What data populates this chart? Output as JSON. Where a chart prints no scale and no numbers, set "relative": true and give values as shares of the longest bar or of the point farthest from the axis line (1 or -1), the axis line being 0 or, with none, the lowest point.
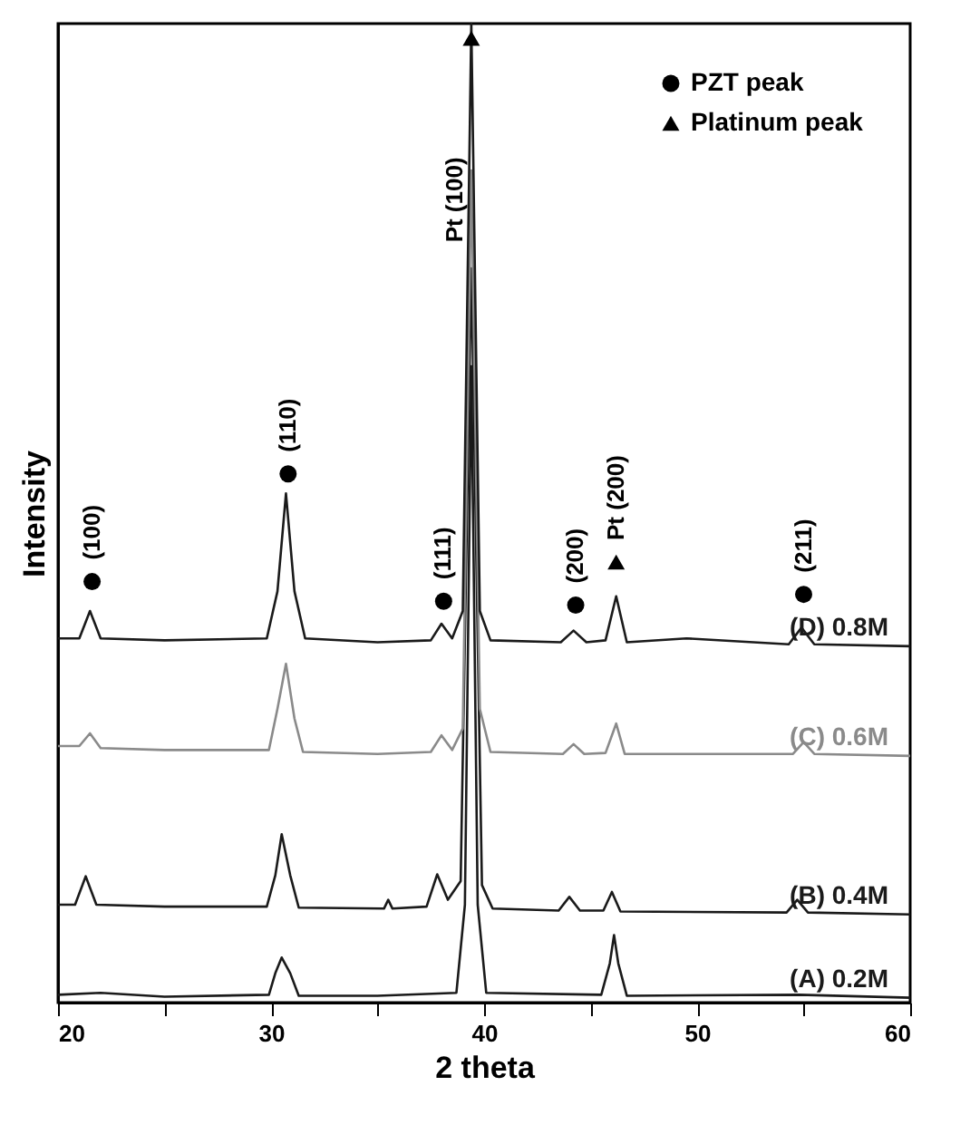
{
  "chart_data": {
    "type": "line",
    "relative": true,
    "xlabel": "2 theta",
    "ylabel": "Intensity",
    "xlim": [
      20,
      60
    ],
    "xticks": [
      20,
      {
        "value": 25,
        "label": null
      },
      30,
      {
        "value": 35,
        "label": null
      },
      40,
      {
        "value": 45,
        "label": null
      },
      50,
      {
        "value": 55,
        "label": null
      },
      60
    ],
    "grid": false,
    "legend": "top right",
    "marker": "none",
    "line_style": "solid",
    "series": [
      {
        "name": "(A) 0.2M",
        "color": "#1a1a1a",
        "x": [
          20,
          22,
          25,
          29.9,
          30.2,
          30.5,
          30.9,
          31.3,
          35,
          38.7,
          39.1,
          39.4,
          39.7,
          40.1,
          45.5,
          45.9,
          46.1,
          46.3,
          46.7,
          54.8,
          60
        ],
        "values": [
          0.008,
          0.01,
          0.006,
          0.008,
          0.03,
          0.046,
          0.03,
          0.007,
          0.007,
          0.01,
          0.1,
          0.65,
          0.1,
          0.01,
          0.008,
          0.04,
          0.069,
          0.04,
          0.007,
          0.008,
          0.005
        ]
      },
      {
        "name": "(B) 0.4M",
        "color": "#1a1a1a",
        "x": [
          20,
          20.8,
          21.3,
          21.8,
          25,
          29.8,
          30.2,
          30.5,
          30.9,
          31.3,
          35.3,
          35.5,
          35.7,
          37.3,
          37.8,
          38.3,
          38.9,
          39.4,
          39.9,
          40.4,
          43.5,
          44.0,
          44.5,
          45.6,
          46.0,
          46.4,
          54.2,
          54.7,
          55.2,
          60
        ],
        "values": [
          0.1,
          0.1,
          0.129,
          0.1,
          0.098,
          0.098,
          0.13,
          0.172,
          0.13,
          0.097,
          0.096,
          0.105,
          0.096,
          0.098,
          0.131,
          0.105,
          0.124,
          0.75,
          0.12,
          0.096,
          0.094,
          0.108,
          0.094,
          0.094,
          0.113,
          0.093,
          0.092,
          0.105,
          0.092,
          0.09
        ]
      },
      {
        "name": "(C) 0.6M",
        "color": "#8a8a8a",
        "x": [
          20,
          21.0,
          21.5,
          22.0,
          25,
          29.9,
          30.3,
          30.7,
          31.1,
          31.5,
          35,
          37.5,
          38.0,
          38.5,
          39.0,
          39.4,
          39.8,
          40.3,
          43.7,
          44.2,
          44.7,
          45.7,
          46.2,
          46.6,
          54.5,
          55.0,
          55.5,
          60
        ],
        "values": [
          0.262,
          0.262,
          0.275,
          0.26,
          0.258,
          0.258,
          0.3,
          0.346,
          0.29,
          0.256,
          0.254,
          0.256,
          0.273,
          0.258,
          0.28,
          0.85,
          0.3,
          0.256,
          0.254,
          0.264,
          0.254,
          0.255,
          0.285,
          0.254,
          0.254,
          0.266,
          0.254,
          0.252
        ]
      },
      {
        "name": "(D) 0.8M",
        "color": "#1a1a1a",
        "x": [
          20,
          21.0,
          21.5,
          22.0,
          25,
          29.8,
          30.3,
          30.7,
          31.1,
          31.6,
          35,
          37.5,
          38.0,
          38.5,
          39.0,
          39.4,
          39.8,
          40.3,
          43.6,
          44.2,
          44.8,
          45.7,
          46.2,
          46.7,
          49.5,
          54.3,
          54.9,
          55.5,
          60
        ],
        "values": [
          0.372,
          0.372,
          0.4,
          0.372,
          0.37,
          0.372,
          0.42,
          0.52,
          0.42,
          0.372,
          0.368,
          0.37,
          0.387,
          0.372,
          0.4,
          1.0,
          0.4,
          0.37,
          0.368,
          0.38,
          0.368,
          0.37,
          0.415,
          0.368,
          0.372,
          0.366,
          0.383,
          0.366,
          0.364
        ]
      },
      {
        "name": "PZT peak",
        "type": "scatter",
        "marker": "circle",
        "color": "#000000",
        "x": [
          21.6,
          30.8,
          38.1,
          44.3,
          55.0
        ],
        "values": [
          0.43,
          0.54,
          0.41,
          0.406,
          0.417
        ]
      },
      {
        "name": "Platinum peak",
        "type": "scatter",
        "marker": "triangle",
        "color": "#000000",
        "x": [
          39.4,
          46.2
        ],
        "values": [
          0.985,
          0.45
        ]
      }
    ],
    "annotations": [
      {
        "text": "(100)",
        "x": 21.6,
        "y": 0.43
      },
      {
        "text": "(110)",
        "x": 30.8,
        "y": 0.54
      },
      {
        "text": "(111)",
        "x": 38.1,
        "y": 0.41
      },
      {
        "text": "Pt (100)",
        "x": 39.4,
        "y": 0.82
      },
      {
        "text": "(200)",
        "x": 44.3,
        "y": 0.406
      },
      {
        "text": "Pt (200)",
        "x": 46.2,
        "y": 0.45
      },
      {
        "text": "(211)",
        "x": 55.0,
        "y": 0.417
      }
    ]
  }
}
